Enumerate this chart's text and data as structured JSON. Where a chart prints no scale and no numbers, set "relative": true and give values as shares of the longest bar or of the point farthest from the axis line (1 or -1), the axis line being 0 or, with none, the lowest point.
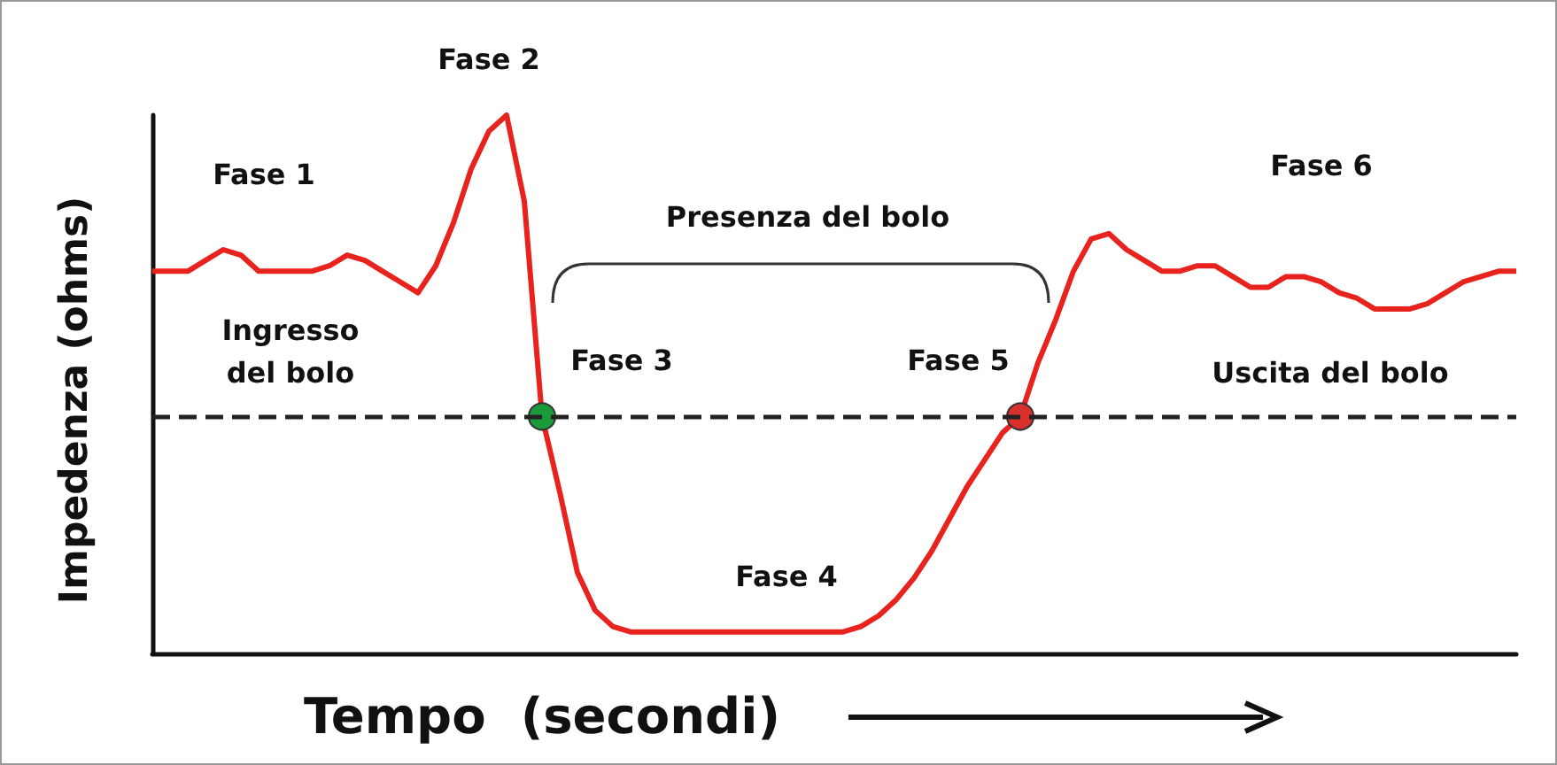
{
  "chart_data": {
    "type": "line",
    "relative": true,
    "xlabel": "Tempo  (secondi)",
    "ylabel": "Impedenza (ohms)",
    "categories": [
      null,
      null,
      null,
      null,
      null,
      null,
      null,
      null,
      null,
      null,
      null,
      null,
      null,
      null,
      null,
      null,
      null,
      null,
      null,
      null,
      null,
      null,
      null,
      null,
      null,
      null,
      null,
      null,
      null,
      null,
      null,
      null,
      null,
      null,
      null,
      null,
      null,
      null,
      null,
      null,
      null,
      null,
      null,
      null,
      null,
      null,
      null,
      null,
      null,
      null,
      null,
      null,
      null,
      null,
      null,
      null,
      null,
      null,
      null,
      null,
      null,
      null,
      null,
      null,
      null,
      null,
      null,
      null,
      null,
      null,
      null,
      null,
      null,
      null,
      null,
      null,
      null,
      null
    ],
    "series": [
      {
        "color": "#e8231e",
        "values": [
          0.71,
          0.71,
          0.71,
          0.73,
          0.75,
          0.74,
          0.71,
          0.71,
          0.71,
          0.71,
          0.72,
          0.74,
          0.73,
          0.71,
          0.69,
          0.67,
          0.72,
          0.8,
          0.9,
          0.97,
          1,
          0.84,
          0.44,
          0.3,
          0.15,
          0.08,
          0.05,
          0.04,
          0.04,
          0.04,
          0.04,
          0.04,
          0.04,
          0.04,
          0.04,
          0.04,
          0.04,
          0.04,
          0.04,
          0.04,
          0.05,
          0.07,
          0.1,
          0.14,
          0.19,
          0.25,
          0.31,
          0.36,
          0.41,
          0.44,
          0.54,
          0.62,
          0.71,
          0.77,
          0.78,
          0.75,
          0.73,
          0.71,
          0.71,
          0.72,
          0.72,
          0.7,
          0.68,
          0.68,
          0.7,
          0.7,
          0.69,
          0.67,
          0.66,
          0.64,
          0.64,
          0.64,
          0.65,
          0.67,
          0.69,
          0.7,
          0.71,
          0.71
        ],
        "colors": [
          null,
          null,
          null,
          null,
          null,
          null,
          null,
          null,
          null,
          null,
          null,
          null,
          null,
          null,
          null,
          null,
          null,
          null,
          null,
          null,
          null,
          null,
          "#1a9a3a",
          null,
          null,
          null,
          null,
          null,
          null,
          null,
          null,
          null,
          null,
          null,
          null,
          null,
          null,
          null,
          null,
          null,
          null,
          null,
          null,
          null,
          null,
          null,
          null,
          null,
          null,
          "#d8302c",
          null,
          null,
          null,
          null,
          null,
          null,
          null,
          null,
          null,
          null,
          null,
          null,
          null,
          null,
          null,
          null,
          null,
          null,
          null,
          null,
          null,
          null,
          null,
          null,
          null,
          null,
          null,
          null
        ]
      }
    ],
    "ref_lines": [
      {
        "axis": "y",
        "value": 0.44,
        "color": "#222222",
        "line_style": "dashed"
      }
    ],
    "annotations": [
      "Fase 1",
      "Fase 2",
      "Ingresso\ndel bolo",
      "Presenza del bolo",
      "Fase 3",
      "Fase 5",
      "Fase 4",
      "Fase 6",
      "Uscita del bolo"
    ],
    "marker": "none",
    "grid": false
  }
}
